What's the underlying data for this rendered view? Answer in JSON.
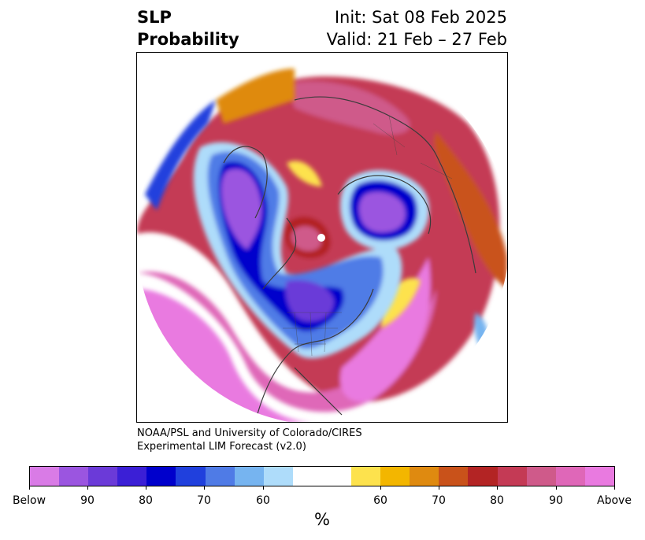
{
  "title": {
    "left_line1": "SLP",
    "left_line2": "Probability",
    "right_line1": "Init: Sat 08 Feb 2025",
    "right_line2": "Valid: 21 Feb – 27 Feb"
  },
  "credit": {
    "line1": "NOAA/PSL and University of Colorado/CIRES",
    "line2": "Experimental LIM Forecast (v2.0)"
  },
  "colorbar": {
    "unit": "%",
    "ticks": [
      "Below",
      "90",
      "80",
      "70",
      "60",
      "60",
      "70",
      "80",
      "90",
      "Above"
    ],
    "colors": [
      "#d97be6",
      "#9b55e0",
      "#6b3ad8",
      "#3b1fd6",
      "#0000cc",
      "#2040dd",
      "#4f7be6",
      "#76b4f0",
      "#aedcfa",
      "#ffffff",
      "#ffffff",
      "#fde24d",
      "#f3b600",
      "#df8a10",
      "#c9521a",
      "#b32424",
      "#c43a55",
      "#cf5a8a",
      "#df67b8",
      "#e97ae0"
    ]
  },
  "map": {
    "projection": "north-polar-stereographic",
    "regions": {
      "north_america": "below",
      "greenland_baffin": "below",
      "north_central_russia": "below",
      "east_pacific": "above",
      "atlantic": "above",
      "europe_west_russia": "above",
      "arctic_ocean_spot": "above"
    }
  }
}
